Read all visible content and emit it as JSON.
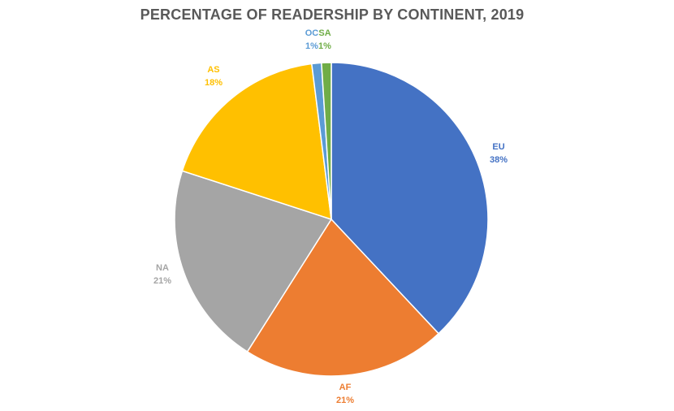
{
  "chart_data": {
    "type": "pie",
    "title": "PERCENTAGE OF READERSHIP BY CONTINENT, 2019",
    "slices": [
      {
        "label": "EU",
        "value": 38,
        "pct_label": "38%",
        "color": "#4472C4"
      },
      {
        "label": "AF",
        "value": 21,
        "pct_label": "21%",
        "color": "#ED7D31"
      },
      {
        "label": "NA",
        "value": 21,
        "pct_label": "21%",
        "color": "#A5A5A5"
      },
      {
        "label": "AS",
        "value": 18,
        "pct_label": "18%",
        "color": "#FFC000"
      },
      {
        "label": "OC",
        "value": 1,
        "pct_label": "1%",
        "color": "#5B9BD5"
      },
      {
        "label": "SA",
        "value": 1,
        "pct_label": "1%",
        "color": "#70AD47"
      }
    ],
    "legend": "none",
    "data_labels": "outside"
  }
}
